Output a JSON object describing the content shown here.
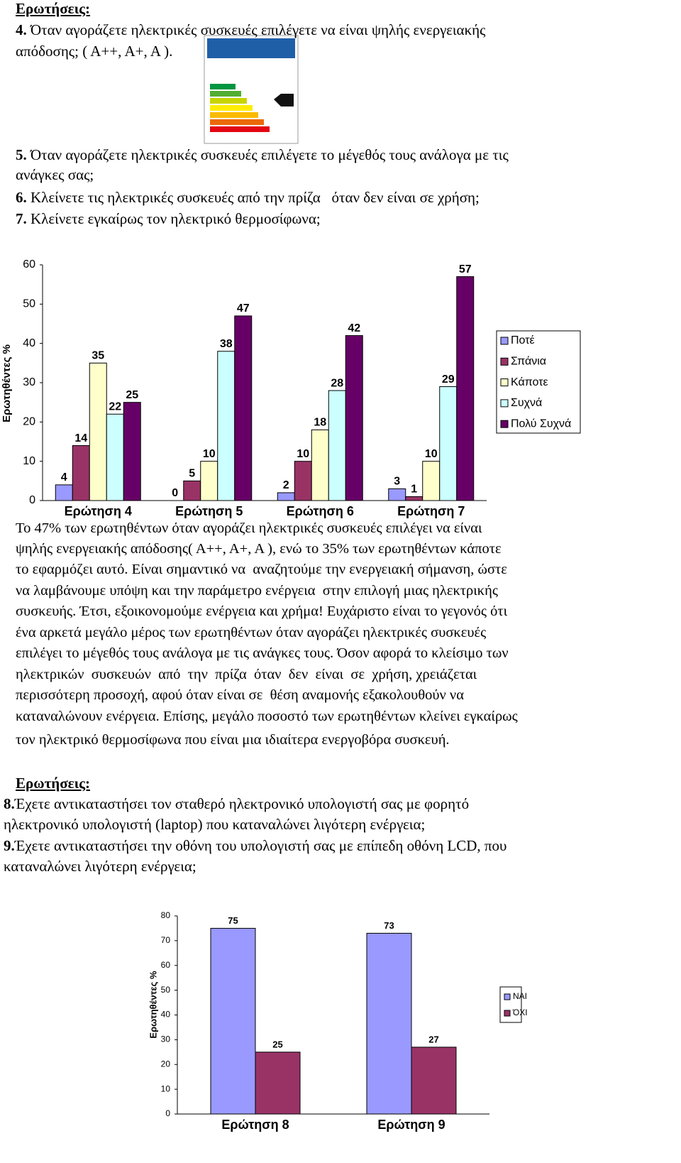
{
  "header_1": "Ερωτήσεις:",
  "questions_1": [
    {
      "number": "4.",
      "lines": [
        "Όταν αγοράζετε ηλεκτρικές συσκευές επιλέγετε να είναι ψηλής ενεργειακής",
        "απόδοσης; ( Α++, Α+, Α )."
      ]
    },
    {
      "number": "5.",
      "lines": [
        "Όταν αγοράζετε ηλεκτρικές συσκευές επιλέγετε το μέγεθός τους ανάλογα με τις",
        "ανάγκες σας;"
      ]
    },
    {
      "number": "6.",
      "lines": [
        "Κλείνετε τις ηλεκτρικές συσκευές από την πρίζα   όταν δεν είναι σε χρήση;"
      ]
    },
    {
      "number": "7.",
      "lines": [
        "Κλείνετε εγκαίρως τον ηλεκτρικό θερμοσίφωνα;"
      ]
    }
  ],
  "chart_data": [
    {
      "type": "bar",
      "ylabel": "Ερωτηθέντες %",
      "categories": [
        "Ερώτηση 4",
        "Ερώτηση 5",
        "Ερώτηση 6",
        "Ερώτηση 7"
      ],
      "series": [
        {
          "name": "Ποτέ",
          "color": "#9999ff",
          "values": [
            4,
            0,
            2,
            3
          ]
        },
        {
          "name": "Σπάνια",
          "color": "#993366",
          "values": [
            14,
            5,
            10,
            1
          ]
        },
        {
          "name": "Κάποτε",
          "color": "#ffffcc",
          "values": [
            35,
            10,
            18,
            10
          ]
        },
        {
          "name": "Συχνά",
          "color": "#ccffff",
          "values": [
            22,
            38,
            28,
            29
          ]
        },
        {
          "name": "Πολύ Συχνά",
          "color": "#660066",
          "values": [
            25,
            47,
            42,
            57
          ]
        }
      ],
      "ylim": [
        0,
        60
      ],
      "yticks": [
        0,
        10,
        20,
        30,
        40,
        50,
        60
      ],
      "grid": false,
      "legend": "right"
    },
    {
      "type": "bar",
      "ylabel": "Ερωτηθέντες %",
      "categories": [
        "Ερώτηση 8",
        "Ερώτηση 9"
      ],
      "series": [
        {
          "name": "ΝΑΙ",
          "color": "#9999ff",
          "values": [
            75,
            73
          ]
        },
        {
          "name": "ΌΧΙ",
          "color": "#993366",
          "values": [
            25,
            27
          ]
        }
      ],
      "ylim": [
        0,
        80
      ],
      "yticks": [
        0,
        10,
        20,
        30,
        40,
        50,
        60,
        70,
        80
      ],
      "grid": false,
      "legend": "right"
    }
  ],
  "paragraph": [
    "Το 47% των ερωτηθέντων όταν αγοράζει ηλεκτρικές συσκευές επιλέγει να είναι",
    "ψηλής ενεργειακής απόδοσης( Α++, Α+, Α ), ενώ το 35% των ερωτηθέντων κάποτε",
    "το εφαρμόζει αυτό. Είναι σημαντικό να  αναζητούμε την ενεργειακή σήμανση, ώστε",
    "να λαμβάνουμε υπόψη και την παράμετρο ενέργεια  στην επιλογή μιας ηλεκτρικής",
    "συσκευής. Έτσι, εξοικονομούμε ενέργεια και χρήμα! Ευχάριστο είναι το γεγονός ότι",
    "ένα αρκετά μεγάλο μέρος των ερωτηθέντων όταν αγοράζει ηλεκτρικές συσκευές",
    "επιλέγει το μέγεθός τους ανάλογα με τις ανάγκες τους. Όσον αφορά το κλείσιμο των",
    "ηλεκτρικών  συσκευών  από  την  πρίζα  όταν  δεν  είναι  σε  χρήση, χρειάζεται",
    "περισσότερη προσοχή, αφού όταν είναι σε  θέση αναμονής εξακολουθούν να",
    "καταναλώνουν ενέργεια. Επίσης, μεγάλο ποσοστό των ερωτηθέντων κλείνει εγκαίρως",
    "τον ηλεκτρικό θερμοσίφωνα που είναι μια ιδιαίτερα ενεργοβόρα συσκευή."
  ],
  "header_2": "Ερωτήσεις:",
  "questions_2": [
    {
      "number": "8.",
      "lines": [
        "Έχετε αντικαταστήσει τον σταθερό ηλεκτρονικό υπολογιστή σας με φορητό",
        "ηλεκτρονικό υπολογιστή (laptop) που καταναλώνει λιγότερη ενέργεια;"
      ]
    },
    {
      "number": "9.",
      "lines": [
        "Έχετε αντικαταστήσει την οθόνη του υπολογιστή σας με επίπεδη οθόνη LCD, που",
        "καταναλώνει λιγότερη ενέργεια;"
      ]
    }
  ]
}
